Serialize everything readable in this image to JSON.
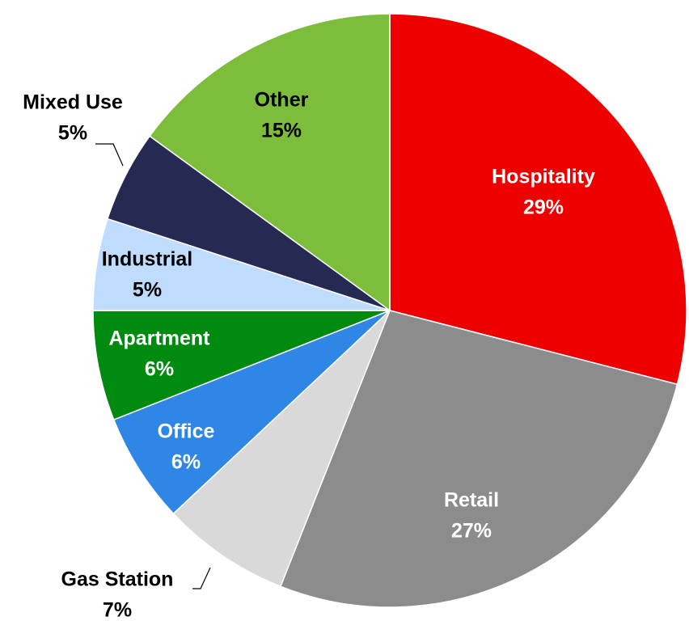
{
  "chart_data": {
    "type": "pie",
    "categories": [
      "Hospitality",
      "Retail",
      "Gas Station",
      "Office",
      "Apartment",
      "Industrial",
      "Mixed Use",
      "Other"
    ],
    "values": [
      29,
      27,
      7,
      6,
      6,
      5,
      5,
      15
    ],
    "value_labels": [
      "29%",
      "27%",
      "7%",
      "6%",
      "6%",
      "5%",
      "5%",
      "15%"
    ],
    "colors": [
      "#ee0000",
      "#8c8c8c",
      "#d9d9d9",
      "#2f86e4",
      "#008a10",
      "#bfdcff",
      "#262a52",
      "#7cbd3b"
    ]
  }
}
